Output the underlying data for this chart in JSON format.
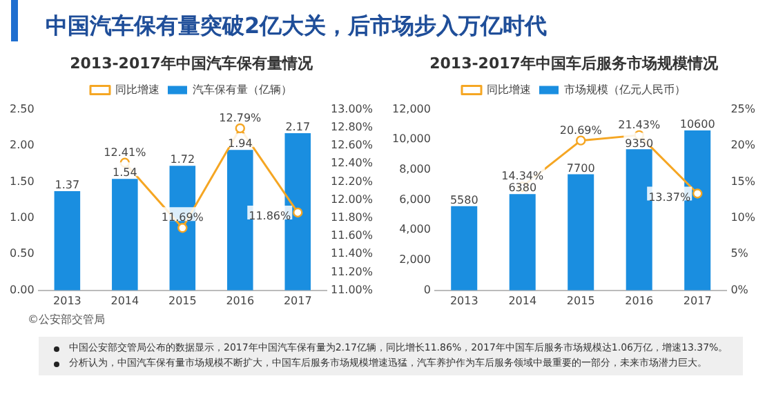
{
  "chart_data": [
    {
      "type": "other",
      "title": "中国汽车保有量突破2亿大关，后市场步入万亿时代"
    },
    {
      "type": "bar",
      "title": "2013-2017年中国汽车保有量情况",
      "categories": [
        "2013",
        "2014",
        "2015",
        "2016",
        "2017"
      ],
      "series": [
        {
          "name": "汽车保有量（亿辆）",
          "type": "bar",
          "color": "#1a8ee0",
          "values": [
            1.37,
            1.54,
            1.72,
            1.94,
            2.17
          ],
          "value_labels": [
            "1.37",
            "1.54",
            "1.72",
            "1.94",
            "2.17"
          ]
        },
        {
          "name": "同比增速",
          "type": "line",
          "axis": "y2",
          "color": "#f5a623",
          "values": [
            null,
            12.41,
            11.69,
            12.79,
            11.86
          ],
          "value_labels": [
            null,
            "12.41%",
            "11.69%",
            "12.79%",
            "11.86%"
          ]
        }
      ],
      "ylim": [
        0,
        2.5
      ],
      "yticks": [
        {
          "value": 0,
          "label": "0.00"
        },
        {
          "value": 0.5,
          "label": "0.50"
        },
        {
          "value": 1,
          "label": "1.00"
        },
        {
          "value": 1.5,
          "label": "1.50"
        },
        {
          "value": 2,
          "label": "2.00"
        },
        {
          "value": 2.5,
          "label": "2.50"
        }
      ],
      "y2lim": [
        11,
        13
      ],
      "y2ticks": [
        {
          "value": 11,
          "label": "11.00%"
        },
        {
          "value": 11.2,
          "label": "11.20%"
        },
        {
          "value": 11.4,
          "label": "11.40%"
        },
        {
          "value": 11.6,
          "label": "11.60%"
        },
        {
          "value": 11.8,
          "label": "11.80%"
        },
        {
          "value": 12,
          "label": "12.00%"
        },
        {
          "value": 12.2,
          "label": "12.20%"
        },
        {
          "value": 12.4,
          "label": "12.40%"
        },
        {
          "value": 12.6,
          "label": "12.60%"
        },
        {
          "value": 12.8,
          "label": "12.80%"
        },
        {
          "value": 13,
          "label": "13.00%"
        }
      ],
      "legend": "top",
      "marker": "circle",
      "grid": false,
      "annotations": [
        "©公安部交管局"
      ]
    },
    {
      "type": "bar",
      "title": "2013-2017年中国车后服务市场规模情况",
      "categories": [
        "2013",
        "2014",
        "2015",
        "2016",
        "2017"
      ],
      "series": [
        {
          "name": "市场规模（亿元人民币）",
          "type": "bar",
          "color": "#1a8ee0",
          "values": [
            5580,
            6380,
            7700,
            9350,
            10600
          ],
          "value_labels": [
            "5580",
            "6380",
            "7700",
            "9350",
            "10600"
          ]
        },
        {
          "name": "同比增速",
          "type": "line",
          "axis": "y2",
          "color": "#f5a623",
          "values": [
            null,
            14.34,
            20.69,
            21.43,
            13.37
          ],
          "value_labels": [
            null,
            "14.34%",
            "20.69%",
            "21.43%",
            "13.37%"
          ]
        }
      ],
      "ylim": [
        0,
        12000
      ],
      "yticks": [
        0,
        {
          "value": 2000,
          "label": "2,000"
        },
        {
          "value": 4000,
          "label": "4,000"
        },
        {
          "value": 6000,
          "label": "6,000"
        },
        {
          "value": 8000,
          "label": "8,000"
        },
        {
          "value": 10000,
          "label": "10,000"
        },
        {
          "value": 12000,
          "label": "12,000"
        }
      ],
      "y2lim": [
        0,
        25
      ],
      "y2ticks": [
        {
          "value": 0,
          "label": "0%"
        },
        {
          "value": 5,
          "label": "5%"
        },
        {
          "value": 10,
          "label": "10%"
        },
        {
          "value": 15,
          "label": "15%"
        },
        {
          "value": 20,
          "label": "20%"
        },
        {
          "value": 25,
          "label": "25%"
        }
      ],
      "legend": "top",
      "marker": "circle",
      "grid": false
    },
    {
      "type": "other",
      "annotations": [
        "中国公安部交管局公布的数据显示，2017年中国汽车保有量为2.17亿辆，同比增长11.86%，2017年中国车后服务市场规模达1.06万亿，增速13.37%。",
        "分析认为，中国汽车保有量市场规模不断扩大，中国车后服务市场规模增速迅猛，汽车养护作为车后服务领域中最重要的一部分，未来市场潜力巨大。"
      ]
    }
  ]
}
